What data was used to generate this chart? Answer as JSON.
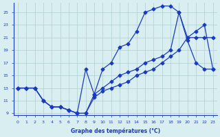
{
  "xlabel": "Graphe des températures (°C)",
  "background_color": "#d8eef0",
  "line_color": "#1a3bbf",
  "grid_color": "#b0cdd0",
  "xlim": [
    0,
    23
  ],
  "ylim": [
    9,
    26
  ],
  "yticks": [
    9,
    11,
    13,
    15,
    17,
    19,
    21,
    23,
    25
  ],
  "xticks": [
    0,
    1,
    2,
    3,
    4,
    5,
    6,
    7,
    8,
    9,
    10,
    11,
    12,
    13,
    14,
    15,
    16,
    17,
    18,
    19,
    20,
    21,
    22,
    23
  ],
  "line1_x": [
    0,
    1,
    2,
    3,
    4,
    5,
    6,
    7,
    8,
    9,
    10,
    11,
    12,
    13,
    14,
    15,
    16,
    17,
    18,
    19,
    20,
    21,
    22,
    23
  ],
  "line1_y": [
    13,
    13,
    13,
    11,
    10,
    10,
    9.5,
    9,
    9,
    12,
    16,
    17,
    19.5,
    20,
    22,
    25,
    25.5,
    26,
    26,
    25,
    20.5,
    17,
    16,
    16
  ],
  "line2_x": [
    0,
    1,
    2,
    3,
    4,
    5,
    6,
    7,
    8,
    9,
    10,
    11,
    12,
    13,
    14,
    15,
    16,
    17,
    18,
    19,
    20,
    21,
    22,
    23
  ],
  "line2_y": [
    13,
    13,
    13,
    11,
    10,
    10,
    9.5,
    9,
    16,
    12,
    13,
    14,
    15,
    15.5,
    16,
    17,
    17.5,
    18,
    19,
    25,
    21,
    21,
    21,
    21
  ],
  "line3_x": [
    0,
    1,
    2,
    3,
    4,
    5,
    6,
    7,
    8,
    9,
    10,
    11,
    12,
    13,
    14,
    15,
    16,
    17,
    18,
    19,
    20,
    21,
    22,
    23
  ],
  "line3_y": [
    13,
    13,
    13,
    11,
    10,
    10,
    9.5,
    9,
    9,
    11.5,
    12.5,
    13,
    13.5,
    14,
    15,
    15.5,
    16,
    17,
    18,
    19,
    21,
    22,
    23,
    16
  ]
}
